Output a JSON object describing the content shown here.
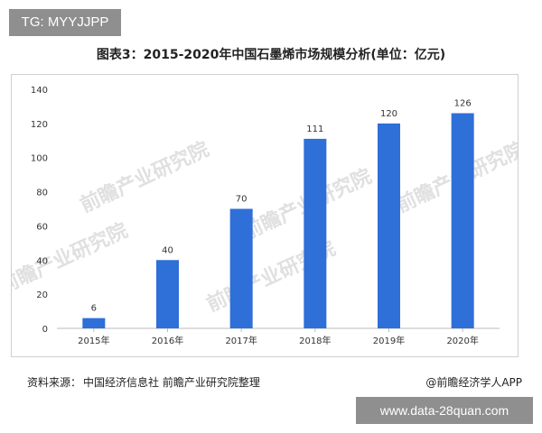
{
  "tag_badge": "TG: MYYJJPP",
  "source_label": "资料来源：",
  "source_text": "中国经济信息社 前瞻产业研究院整理",
  "credit": "@前瞻经济学人APP",
  "site_badge": "www.data-28quan.com",
  "watermark_text": "前瞻产业研究院",
  "colors": {
    "bar": "#2e6fd8",
    "axis": "#bbbbbb",
    "text": "#333333"
  },
  "chart_data": {
    "type": "bar",
    "title": "图表3：2015-2020年中国石墨烯市场规模分析(单位：亿元)",
    "categories": [
      "2015年",
      "2016年",
      "2017年",
      "2018年",
      "2019年",
      "2020年"
    ],
    "values": [
      6,
      40,
      70,
      111,
      120,
      126
    ],
    "data_labels": [
      "6",
      "40",
      "70",
      "111",
      "120",
      "126"
    ],
    "ylim": [
      0,
      140
    ],
    "yticks": [
      "0",
      "20",
      "40",
      "60",
      "80",
      "100",
      "120",
      "140"
    ],
    "grid": false,
    "xlabel": "",
    "ylabel": ""
  }
}
